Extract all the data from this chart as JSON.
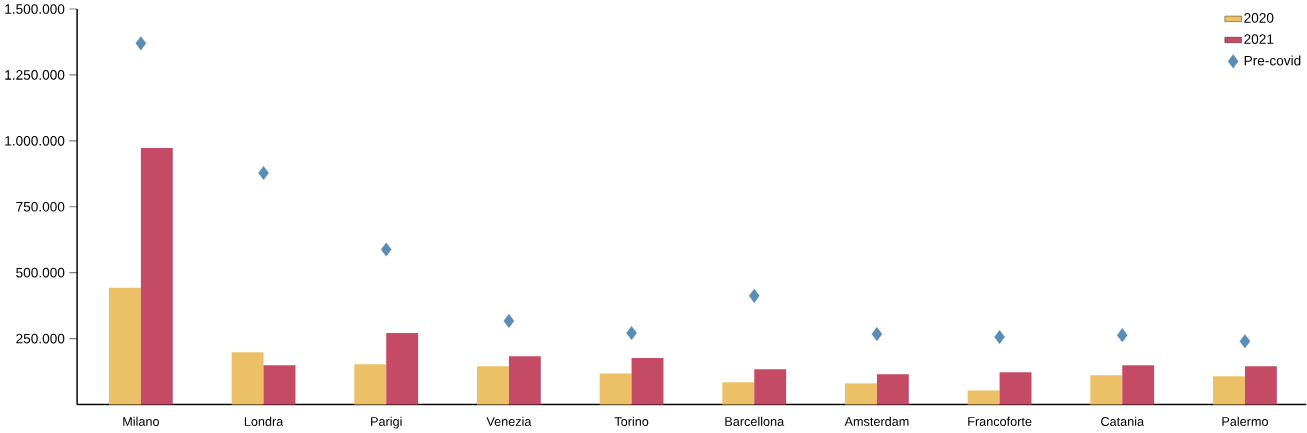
{
  "chart_data": {
    "type": "bar",
    "categories": [
      "Milano",
      "Londra",
      "Parigi",
      "Venezia",
      "Torino",
      "Barcellona",
      "Amsterdam",
      "Francoforte",
      "Catania",
      "Palermo"
    ],
    "series": [
      {
        "name": "2020",
        "color": "#ebc066",
        "values": [
          443000,
          198000,
          153000,
          145000,
          118000,
          84000,
          80000,
          53000,
          111000,
          107000
        ]
      },
      {
        "name": "2021",
        "color": "#c54a65",
        "values": [
          973000,
          149000,
          271000,
          183000,
          176000,
          134000,
          115000,
          122000,
          149000,
          145000
        ]
      },
      {
        "name": "Pre-covid",
        "type": "scatter",
        "marker": "diamond",
        "color": "#5a8db5",
        "values": [
          1370000,
          878000,
          588000,
          317000,
          271000,
          412000,
          267000,
          256000,
          263000,
          240000
        ]
      }
    ],
    "ylim": [
      0,
      1500000
    ],
    "yticks": [
      {
        "value": 250000,
        "label": "250.000"
      },
      {
        "value": 500000,
        "label": "500.000"
      },
      {
        "value": 750000,
        "label": "750.000"
      },
      {
        "value": 1000000,
        "label": "1.000.000"
      },
      {
        "value": 1250000,
        "label": "1.250.000"
      },
      {
        "value": 1500000,
        "label": "1.500.000"
      }
    ],
    "grid": false,
    "legend": "top right"
  }
}
